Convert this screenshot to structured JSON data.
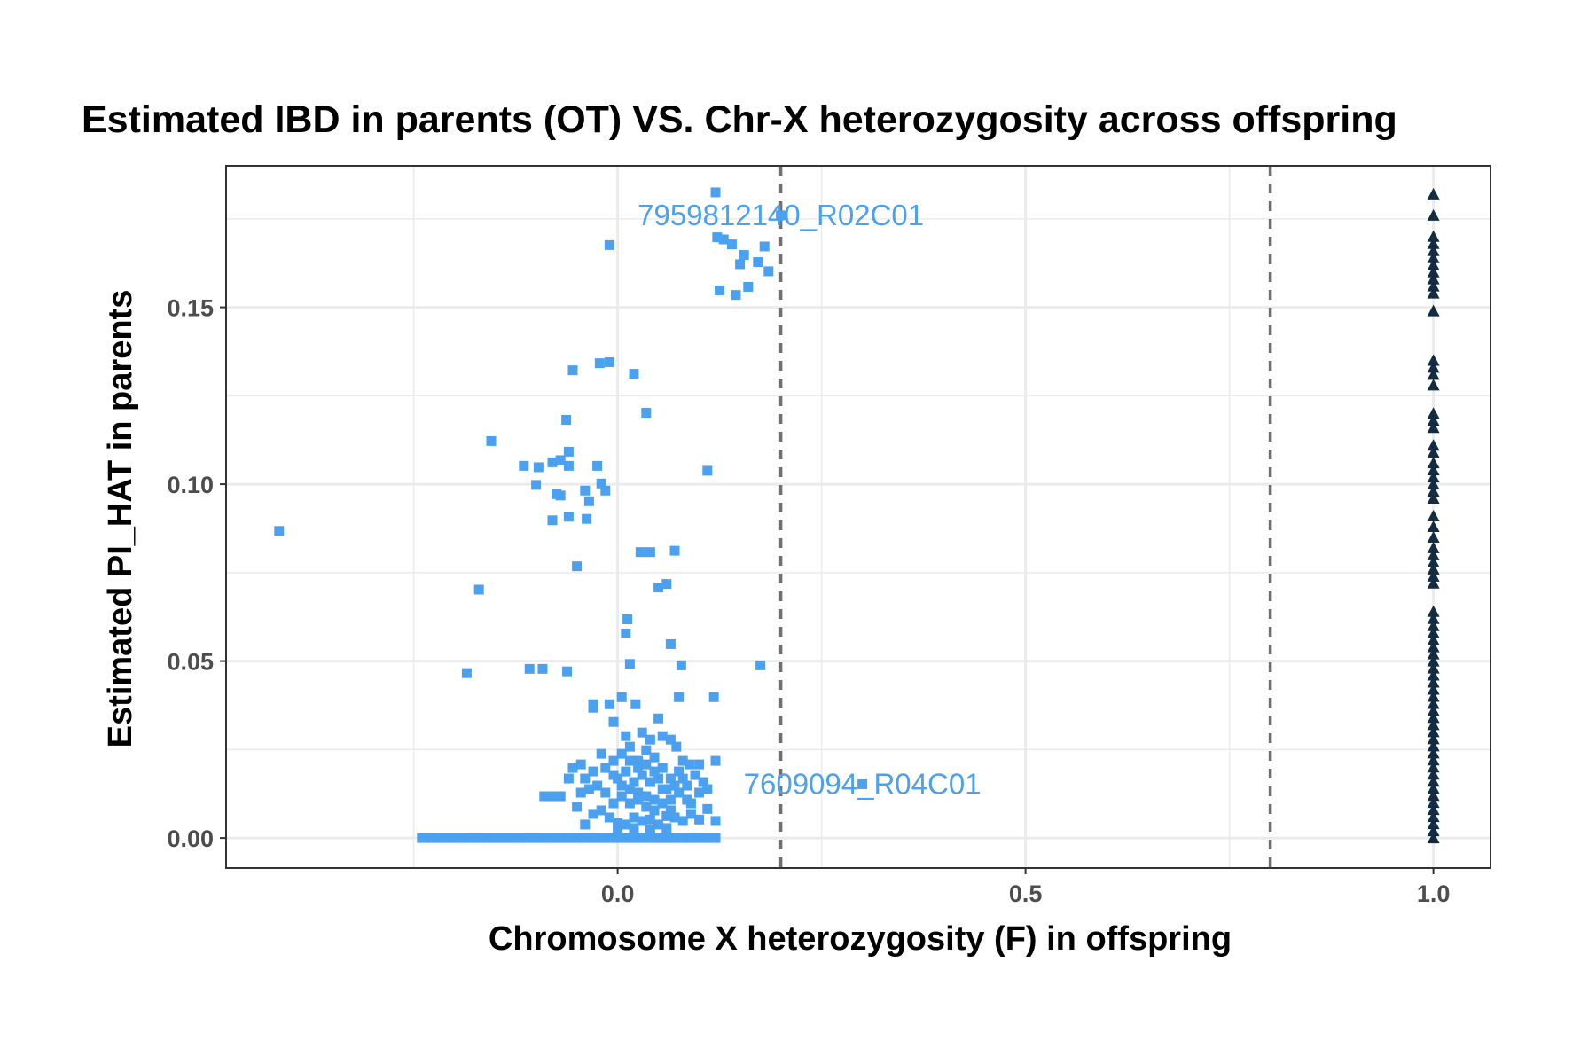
{
  "chart_data": {
    "type": "scatter",
    "title": "Estimated IBD in parents (OT) VS. Chr-X heterozygosity across offspring",
    "xlabel": "Chromosome X heterozygosity (F) in offspring",
    "ylabel": "Estimated PI_HAT in parents",
    "xlim": [
      -0.48,
      1.07
    ],
    "ylim": [
      -0.0085,
      0.19
    ],
    "x_ticks": [
      0.0,
      0.5,
      1.0
    ],
    "x_tick_labels": [
      "0.0",
      "0.5",
      "1.0"
    ],
    "y_ticks": [
      0.0,
      0.05,
      0.1,
      0.15
    ],
    "y_tick_labels": [
      "0.00",
      "0.05",
      "0.10",
      "0.15"
    ],
    "grid": true,
    "legend": "none",
    "vlines": [
      0.2,
      0.8
    ],
    "vline_style": "dashed",
    "colors": {
      "female": "#4ba0f0",
      "male": "#132b43",
      "vline": "#707070",
      "grid": "#ebebeb",
      "border": "#333333"
    },
    "annotations": [
      {
        "text": "7959812140_R02C01",
        "x": 0.2,
        "y": 0.176,
        "color": "#4ba0f0"
      },
      {
        "text": "7609094_R04C01",
        "x": 0.3,
        "y": 0.0152,
        "color": "#4ba0f0"
      }
    ],
    "series": [
      {
        "marker": "square",
        "color": "#4ba0f0",
        "points": [
          [
            -0.415,
            0.0868
          ],
          [
            -0.17,
            0.0702
          ],
          [
            -0.155,
            0.1122
          ],
          [
            -0.185,
            0.0466
          ],
          [
            -0.115,
            0.1052
          ],
          [
            -0.108,
            0.0478
          ],
          [
            -0.097,
            0.1048
          ],
          [
            -0.1,
            0.0998
          ],
          [
            -0.092,
            0.0478
          ],
          [
            -0.08,
            0.1062
          ],
          [
            -0.075,
            0.0972
          ],
          [
            -0.08,
            0.0898
          ],
          [
            -0.07,
            0.0968
          ],
          [
            -0.07,
            0.1068
          ],
          [
            -0.06,
            0.0908
          ],
          [
            -0.062,
            0.0471
          ],
          [
            -0.06,
            0.1092
          ],
          [
            -0.063,
            0.1182
          ],
          [
            -0.06,
            0.1052
          ],
          [
            -0.055,
            0.1322
          ],
          [
            -0.05,
            0.0768
          ],
          [
            -0.04,
            0.0982
          ],
          [
            -0.038,
            0.0902
          ],
          [
            -0.035,
            0.0952
          ],
          [
            -0.025,
            0.1052
          ],
          [
            -0.03,
            0.0378
          ],
          [
            -0.03,
            0.0368
          ],
          [
            -0.02,
            0.1002
          ],
          [
            -0.015,
            0.0982
          ],
          [
            -0.022,
            0.1342
          ],
          [
            -0.01,
            0.1345
          ],
          [
            -0.01,
            0.1676
          ],
          [
            0.01,
            0.0578
          ],
          [
            0.012,
            0.0618
          ],
          [
            0.015,
            0.0492
          ],
          [
            0.02,
            0.1312
          ],
          [
            0.022,
            0.0378
          ],
          [
            0.028,
            0.0808
          ],
          [
            0.035,
            0.1202
          ],
          [
            0.04,
            0.0808
          ],
          [
            0.05,
            0.0708
          ],
          [
            0.06,
            0.0718
          ],
          [
            0.065,
            0.0548
          ],
          [
            0.07,
            0.0812
          ],
          [
            0.078,
            0.0488
          ],
          [
            0.075,
            0.0398
          ],
          [
            0.11,
            0.1038
          ],
          [
            0.118,
            0.0398
          ],
          [
            0.12,
            0.1825
          ],
          [
            0.122,
            0.1698
          ],
          [
            0.125,
            0.1548
          ],
          [
            0.13,
            0.1692
          ],
          [
            0.14,
            0.1678
          ],
          [
            0.145,
            0.1535
          ],
          [
            0.15,
            0.1622
          ],
          [
            0.155,
            0.1648
          ],
          [
            0.16,
            0.1558
          ],
          [
            0.172,
            0.1628
          ],
          [
            0.18,
            0.1672
          ],
          [
            0.185,
            0.1602
          ],
          [
            0.175,
            0.0488
          ],
          [
            0.2,
            0.176
          ],
          [
            0.3,
            0.0152
          ],
          [
            -0.01,
            0.0378
          ],
          [
            0.005,
            0.0398
          ],
          [
            -0.005,
            0.0328
          ],
          [
            0.01,
            0.0288
          ],
          [
            0.03,
            0.0298
          ],
          [
            0.04,
            0.0278
          ],
          [
            0.05,
            0.0338
          ],
          [
            0.055,
            0.0288
          ],
          [
            0.065,
            0.0278
          ],
          [
            0.072,
            0.0258
          ],
          [
            0.08,
            0.0218
          ],
          [
            0.088,
            0.0208
          ],
          [
            0.1,
            0.0208
          ],
          [
            0.12,
            0.0218
          ],
          [
            -0.045,
            0.0208
          ],
          [
            -0.055,
            0.0198
          ],
          [
            -0.04,
            0.0168
          ],
          [
            -0.03,
            0.0188
          ],
          [
            -0.02,
            0.0238
          ],
          [
            -0.06,
            0.0168
          ],
          [
            -0.08,
            0.0118
          ],
          [
            -0.09,
            0.0118
          ],
          [
            -0.07,
            0.0118
          ],
          [
            -0.05,
            0.0088
          ],
          [
            -0.04,
            0.0038
          ],
          [
            -0.03,
            0.0068
          ],
          [
            -0.02,
            0.0078
          ],
          [
            -0.01,
            0.0058
          ],
          [
            0.0,
            0.0042
          ],
          [
            0.01,
            0.0038
          ],
          [
            0.02,
            0.0058
          ],
          [
            0.03,
            0.0048
          ],
          [
            0.04,
            0.0052
          ],
          [
            0.05,
            0.0038
          ],
          [
            0.06,
            0.0062
          ],
          [
            0.07,
            0.0058
          ],
          [
            0.08,
            0.0048
          ],
          [
            0.09,
            0.0068
          ],
          [
            0.1,
            0.0052
          ],
          [
            0.11,
            0.0082
          ],
          [
            0.12,
            0.0048
          ],
          [
            0.09,
            0.0098
          ],
          [
            0.1,
            0.0128
          ],
          [
            0.105,
            0.0158
          ],
          [
            0.11,
            0.0138
          ],
          [
            0.095,
            0.0178
          ],
          [
            0.085,
            0.0148
          ],
          [
            0.075,
            0.0188
          ],
          [
            0.065,
            0.0168
          ],
          [
            0.055,
            0.0198
          ],
          [
            0.045,
            0.0228
          ],
          [
            0.035,
            0.0248
          ],
          [
            0.025,
            0.0218
          ],
          [
            0.015,
            0.0258
          ],
          [
            0.005,
            0.0238
          ],
          [
            -0.005,
            0.0218
          ],
          [
            -0.015,
            0.0198
          ],
          [
            -0.025,
            0.0148
          ],
          [
            -0.035,
            0.0138
          ],
          [
            -0.045,
            0.0128
          ],
          [
            -0.015,
            0.0128
          ],
          [
            -0.005,
            0.0098
          ],
          [
            0.005,
            0.0118
          ],
          [
            0.015,
            0.0098
          ],
          [
            0.025,
            0.0128
          ],
          [
            0.035,
            0.0118
          ],
          [
            0.045,
            0.0108
          ],
          [
            0.055,
            0.0138
          ],
          [
            0.065,
            0.0108
          ],
          [
            0.075,
            0.0128
          ],
          [
            0.085,
            0.0108
          ],
          [
            0.0,
            0.0168
          ],
          [
            0.01,
            0.0188
          ],
          [
            0.02,
            0.0158
          ],
          [
            0.03,
            0.0178
          ],
          [
            0.04,
            0.0158
          ],
          [
            0.05,
            0.0168
          ],
          [
            0.06,
            0.0138
          ],
          [
            0.07,
            0.0148
          ],
          [
            0.08,
            0.0168
          ],
          [
            0.015,
            0.0138
          ],
          [
            0.025,
            0.0108
          ],
          [
            0.035,
            0.0088
          ],
          [
            0.045,
            0.0078
          ],
          [
            0.055,
            0.0098
          ],
          [
            0.065,
            0.0078
          ],
          [
            0.005,
            0.0148
          ],
          [
            -0.005,
            0.0178
          ],
          [
            0.025,
            0.0198
          ],
          [
            0.035,
            0.0208
          ],
          [
            0.045,
            0.0188
          ],
          [
            0.015,
            0.0218
          ],
          [
            0.0,
            0.0028
          ],
          [
            0.02,
            0.0028
          ],
          [
            0.04,
            0.0022
          ],
          [
            0.06,
            0.0028
          ],
          [
            -0.24,
            0.0
          ],
          [
            -0.23,
            0.0
          ],
          [
            -0.22,
            0.0
          ],
          [
            -0.21,
            0.0
          ],
          [
            -0.2,
            0.0
          ],
          [
            -0.19,
            0.0
          ],
          [
            -0.18,
            0.0
          ],
          [
            -0.17,
            0.0
          ],
          [
            -0.16,
            0.0
          ],
          [
            -0.15,
            0.0
          ],
          [
            -0.14,
            0.0
          ],
          [
            -0.13,
            0.0
          ],
          [
            -0.12,
            0.0
          ],
          [
            -0.11,
            0.0
          ],
          [
            -0.1,
            0.0
          ],
          [
            -0.09,
            0.0
          ],
          [
            -0.08,
            0.0
          ],
          [
            -0.07,
            0.0
          ],
          [
            -0.06,
            0.0
          ],
          [
            -0.05,
            0.0
          ],
          [
            -0.04,
            0.0
          ],
          [
            -0.03,
            0.0
          ],
          [
            -0.02,
            0.0
          ],
          [
            -0.01,
            0.0
          ],
          [
            0.0,
            0.0
          ],
          [
            0.01,
            0.0
          ],
          [
            0.02,
            0.0
          ],
          [
            0.03,
            0.0
          ],
          [
            0.04,
            0.0
          ],
          [
            0.05,
            0.0
          ],
          [
            0.06,
            0.0
          ],
          [
            0.07,
            0.0
          ],
          [
            0.08,
            0.0
          ],
          [
            0.09,
            0.0
          ],
          [
            0.1,
            0.0
          ],
          [
            0.11,
            0.0
          ],
          [
            0.12,
            0.0
          ]
        ]
      },
      {
        "marker": "triangle",
        "color": "#132b43",
        "points": [
          [
            1.0,
            0.182
          ],
          [
            1.0,
            0.176
          ],
          [
            1.0,
            0.17
          ],
          [
            1.0,
            0.168
          ],
          [
            1.0,
            0.166
          ],
          [
            1.0,
            0.164
          ],
          [
            1.0,
            0.162
          ],
          [
            1.0,
            0.16
          ],
          [
            1.0,
            0.158
          ],
          [
            1.0,
            0.156
          ],
          [
            1.0,
            0.154
          ],
          [
            1.0,
            0.149
          ],
          [
            1.0,
            0.135
          ],
          [
            1.0,
            0.133
          ],
          [
            1.0,
            0.131
          ],
          [
            1.0,
            0.128
          ],
          [
            1.0,
            0.12
          ],
          [
            1.0,
            0.118
          ],
          [
            1.0,
            0.116
          ],
          [
            1.0,
            0.111
          ],
          [
            1.0,
            0.109
          ],
          [
            1.0,
            0.106
          ],
          [
            1.0,
            0.104
          ],
          [
            1.0,
            0.102
          ],
          [
            1.0,
            0.1
          ],
          [
            1.0,
            0.098
          ],
          [
            1.0,
            0.096
          ],
          [
            1.0,
            0.091
          ],
          [
            1.0,
            0.088
          ],
          [
            1.0,
            0.085
          ],
          [
            1.0,
            0.082
          ],
          [
            1.0,
            0.08
          ],
          [
            1.0,
            0.078
          ],
          [
            1.0,
            0.076
          ],
          [
            1.0,
            0.074
          ],
          [
            1.0,
            0.072
          ],
          [
            1.0,
            0.064
          ],
          [
            1.0,
            0.062
          ],
          [
            1.0,
            0.06
          ],
          [
            1.0,
            0.058
          ],
          [
            1.0,
            0.056
          ],
          [
            1.0,
            0.054
          ],
          [
            1.0,
            0.052
          ],
          [
            1.0,
            0.05
          ],
          [
            1.0,
            0.048
          ],
          [
            1.0,
            0.046
          ],
          [
            1.0,
            0.044
          ],
          [
            1.0,
            0.042
          ],
          [
            1.0,
            0.04
          ],
          [
            1.0,
            0.038
          ],
          [
            1.0,
            0.036
          ],
          [
            1.0,
            0.034
          ],
          [
            1.0,
            0.032
          ],
          [
            1.0,
            0.03
          ],
          [
            1.0,
            0.028
          ],
          [
            1.0,
            0.026
          ],
          [
            1.0,
            0.024
          ],
          [
            1.0,
            0.022
          ],
          [
            1.0,
            0.02
          ],
          [
            1.0,
            0.018
          ],
          [
            1.0,
            0.016
          ],
          [
            1.0,
            0.014
          ],
          [
            1.0,
            0.012
          ],
          [
            1.0,
            0.01
          ],
          [
            1.0,
            0.008
          ],
          [
            1.0,
            0.006
          ],
          [
            1.0,
            0.004
          ],
          [
            1.0,
            0.002
          ],
          [
            1.0,
            0.0
          ]
        ]
      }
    ]
  }
}
